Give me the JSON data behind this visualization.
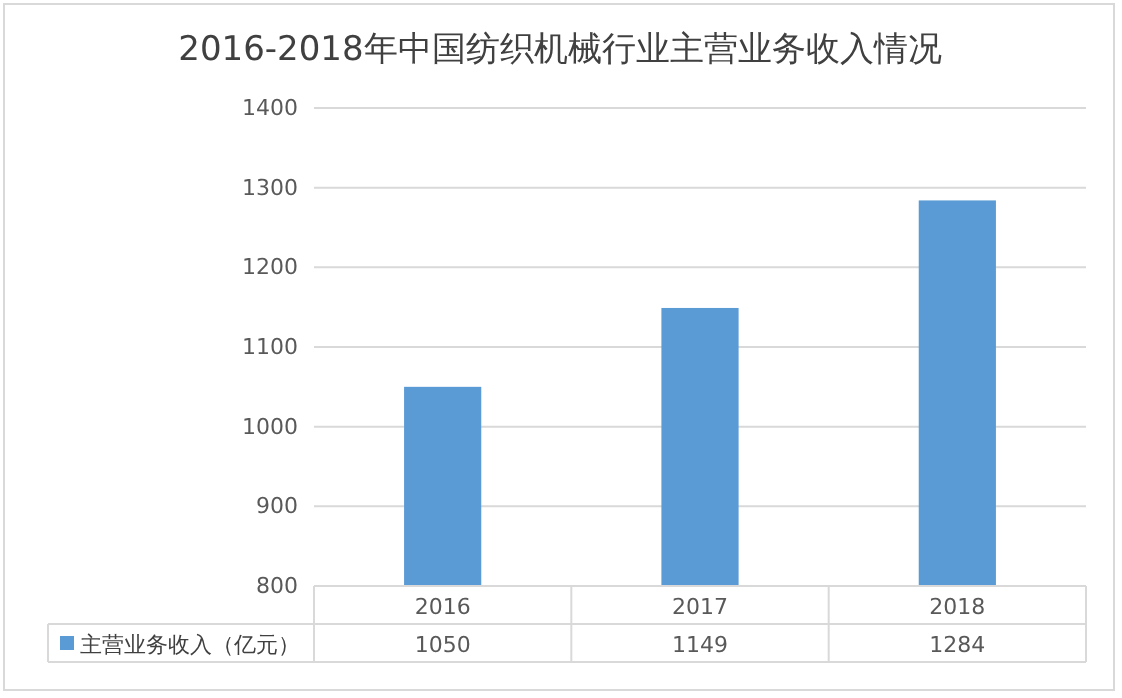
{
  "chart_data": {
    "type": "bar",
    "title": "2016-2018年中国纺织机械行业主营业务收入情况",
    "categories": [
      "2016",
      "2017",
      "2018"
    ],
    "series": [
      {
        "name": "主营业务收入（亿元）",
        "color": "#5b9bd5",
        "values": [
          1050,
          1149,
          1284
        ]
      }
    ],
    "ylim": [
      800,
      1400
    ],
    "yticks": [
      800,
      900,
      1000,
      1100,
      1200,
      1300,
      1400
    ],
    "grid": "y",
    "legend": "bottom",
    "data_labels": true
  }
}
